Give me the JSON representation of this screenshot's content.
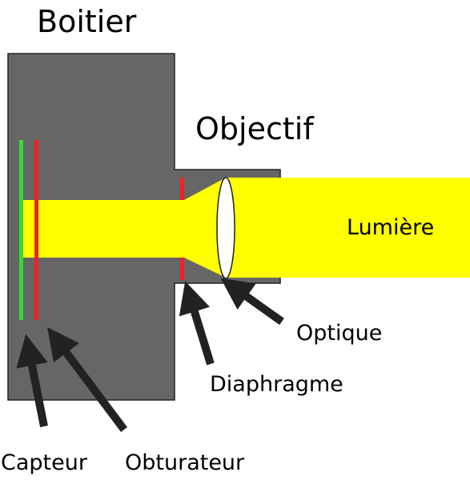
{
  "labels": {
    "body": "Boitier",
    "lens": "Objectif",
    "light": "Lumière",
    "optics": "Optique",
    "diaphragm": "Diaphragme",
    "sensor": "Capteur",
    "shutter": "Obturateur"
  },
  "colors": {
    "body": "#666666",
    "body_outline": "#222222",
    "light": "#ffff00",
    "sensor": "#33dd33",
    "shutter": "#ee2222",
    "diaphragm": "#ee2222",
    "lens_glass": "#ffffff",
    "arrow": "#222222"
  }
}
